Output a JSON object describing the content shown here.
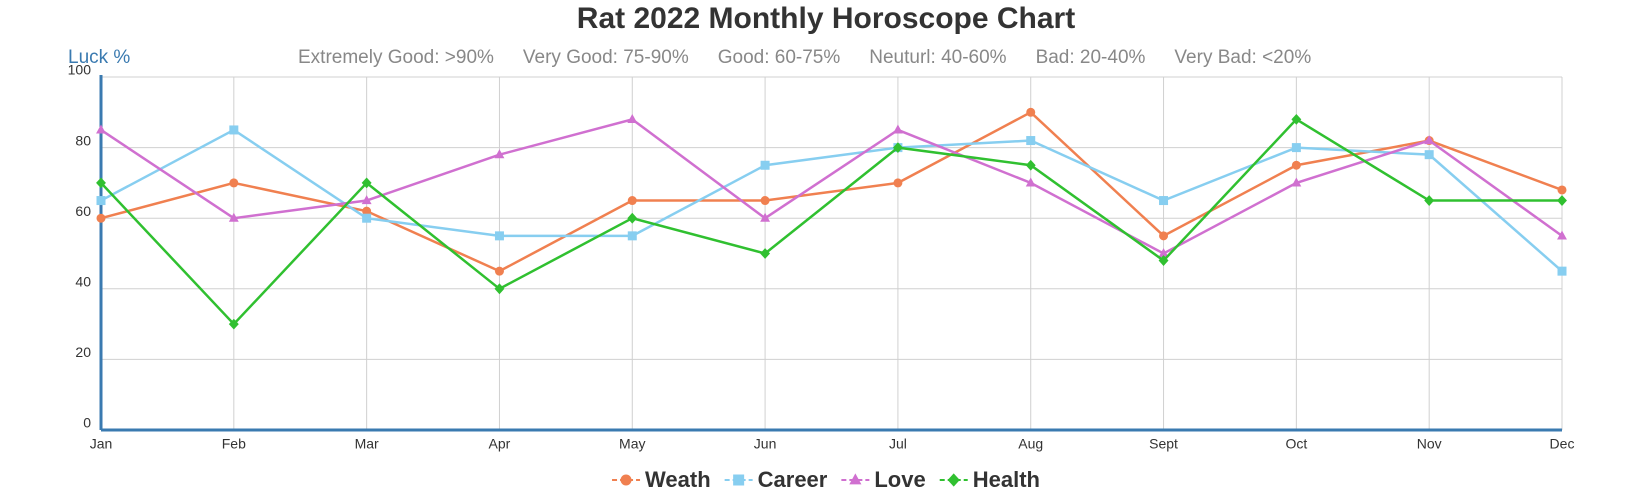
{
  "chart_data": {
    "type": "line",
    "title": "Rat 2022 Monthly Horoscope Chart",
    "y_label": "Luck %",
    "bands": [
      "Extremely Good: >90%",
      "Very Good: 75-90%",
      "Good: 60-75%",
      "Neuturl: 40-60%",
      "Bad: 20-40%",
      "Very Bad: <20%"
    ],
    "categories": [
      "Jan",
      "Feb",
      "Mar",
      "Apr",
      "May",
      "Jun",
      "Jul",
      "Aug",
      "Sept",
      "Oct",
      "Nov",
      "Dec"
    ],
    "series": [
      {
        "name": "Weath",
        "color": "#f08050",
        "marker": "circle",
        "values": [
          60,
          70,
          62,
          45,
          65,
          65,
          70,
          90,
          55,
          75,
          82,
          68
        ]
      },
      {
        "name": "Career",
        "color": "#87cef0",
        "marker": "square",
        "values": [
          65,
          85,
          60,
          55,
          55,
          75,
          80,
          82,
          65,
          80,
          78,
          45
        ]
      },
      {
        "name": "Love",
        "color": "#d070d0",
        "marker": "triangle",
        "values": [
          85,
          60,
          65,
          78,
          88,
          60,
          85,
          70,
          50,
          70,
          82,
          55
        ]
      },
      {
        "name": "Health",
        "color": "#30c030",
        "marker": "diamond",
        "values": [
          70,
          30,
          70,
          40,
          60,
          50,
          80,
          75,
          48,
          88,
          65,
          65
        ]
      }
    ],
    "ylim": [
      0,
      100
    ],
    "yticks": [
      0,
      20,
      40,
      60,
      80,
      100
    ],
    "grid": true
  }
}
